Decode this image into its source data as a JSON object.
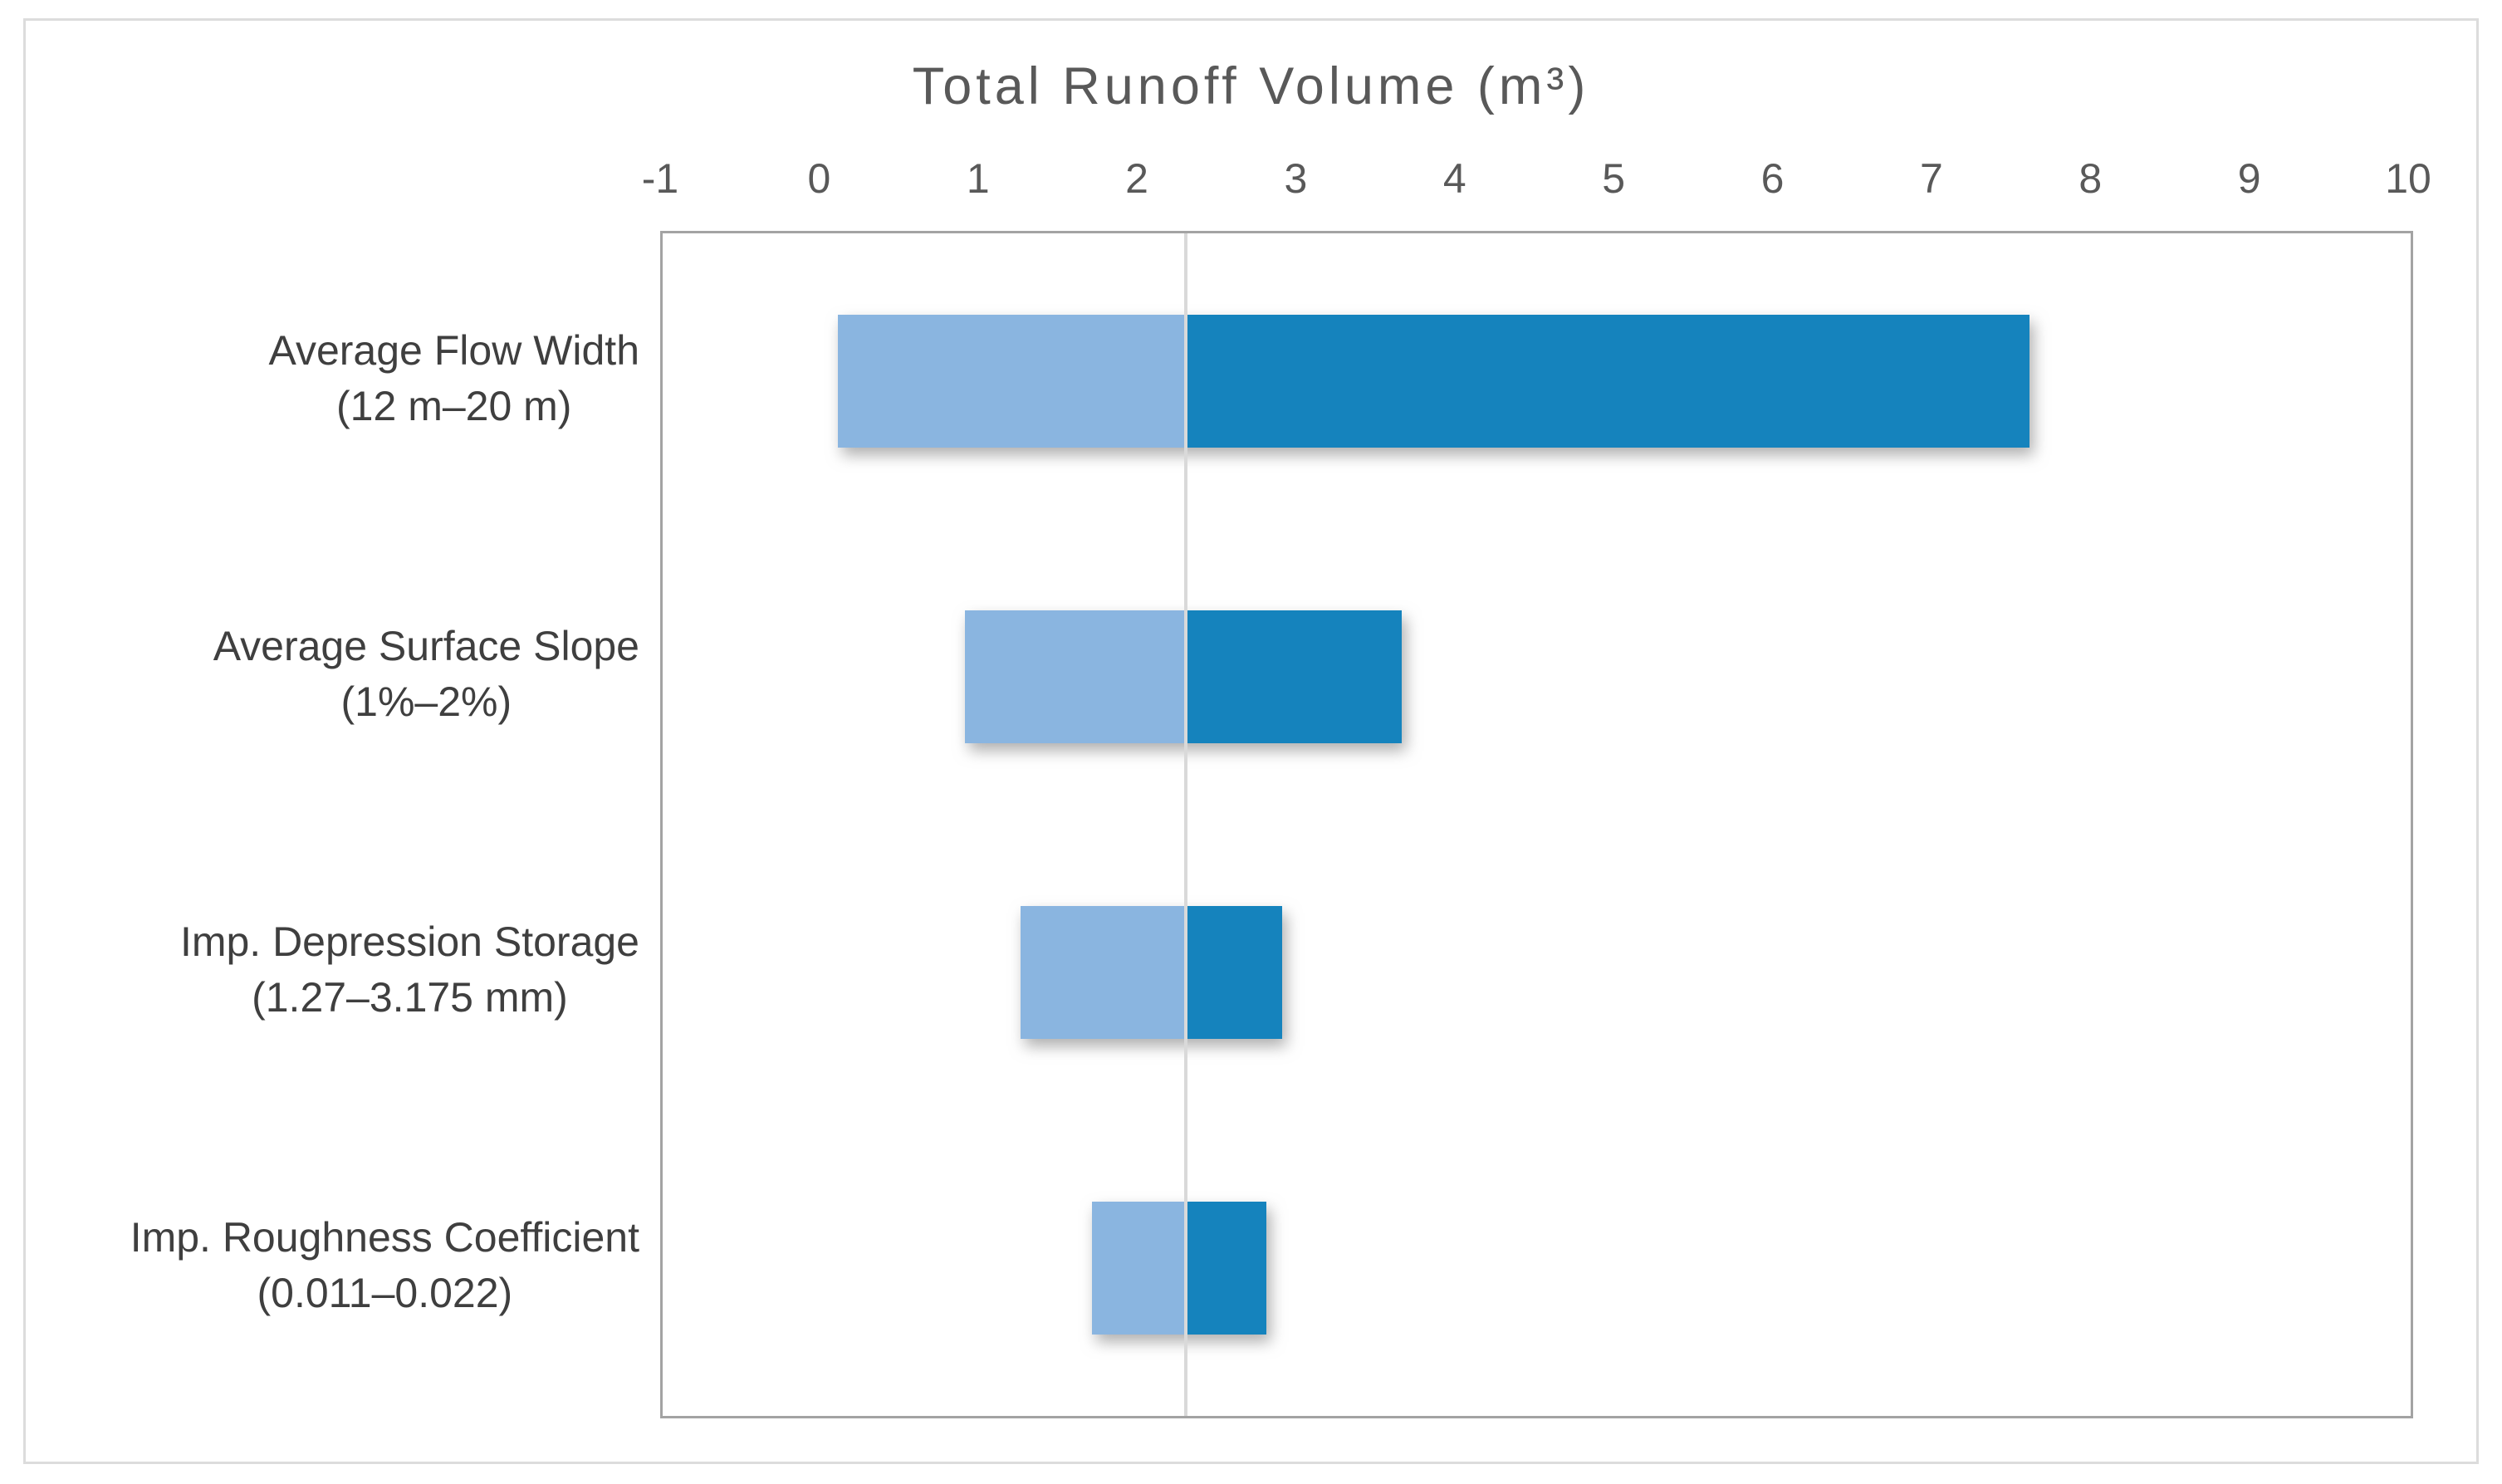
{
  "chart_data": {
    "type": "bar",
    "subtype": "tornado",
    "orientation": "horizontal",
    "title": "Total Runoff Volume (m³)",
    "axis_position": "top",
    "xlim": [
      -1,
      10
    ],
    "x_ticks": [
      -1,
      0,
      1,
      2,
      3,
      4,
      5,
      6,
      7,
      8,
      9,
      10
    ],
    "baseline": 2.29,
    "grid": false,
    "legend": "none",
    "categories": [
      {
        "label": "Average Flow Width",
        "range": "(12 m–20 m)",
        "low": 0.1,
        "high": 7.6
      },
      {
        "label": "Average Surface Slope",
        "range": "(1%–2%)",
        "low": 0.9,
        "high": 3.65
      },
      {
        "label": "Imp. Depression Storage",
        "range": "(1.27–3.175 mm)",
        "low": 1.25,
        "high": 2.9
      },
      {
        "label": "Imp. Roughness Coefficient",
        "range": "(0.011–0.022)",
        "low": 1.7,
        "high": 2.8
      }
    ],
    "colors": {
      "low_segment": "#8ab5e0",
      "high_segment": "#1583bd",
      "baseline_line": "#d9d9d9",
      "plot_border": "#a3a3a3",
      "outer_border": "#dcdcdc",
      "tick_text": "#595959",
      "title_text": "#595959",
      "label_text": "#3f3f3f"
    }
  }
}
